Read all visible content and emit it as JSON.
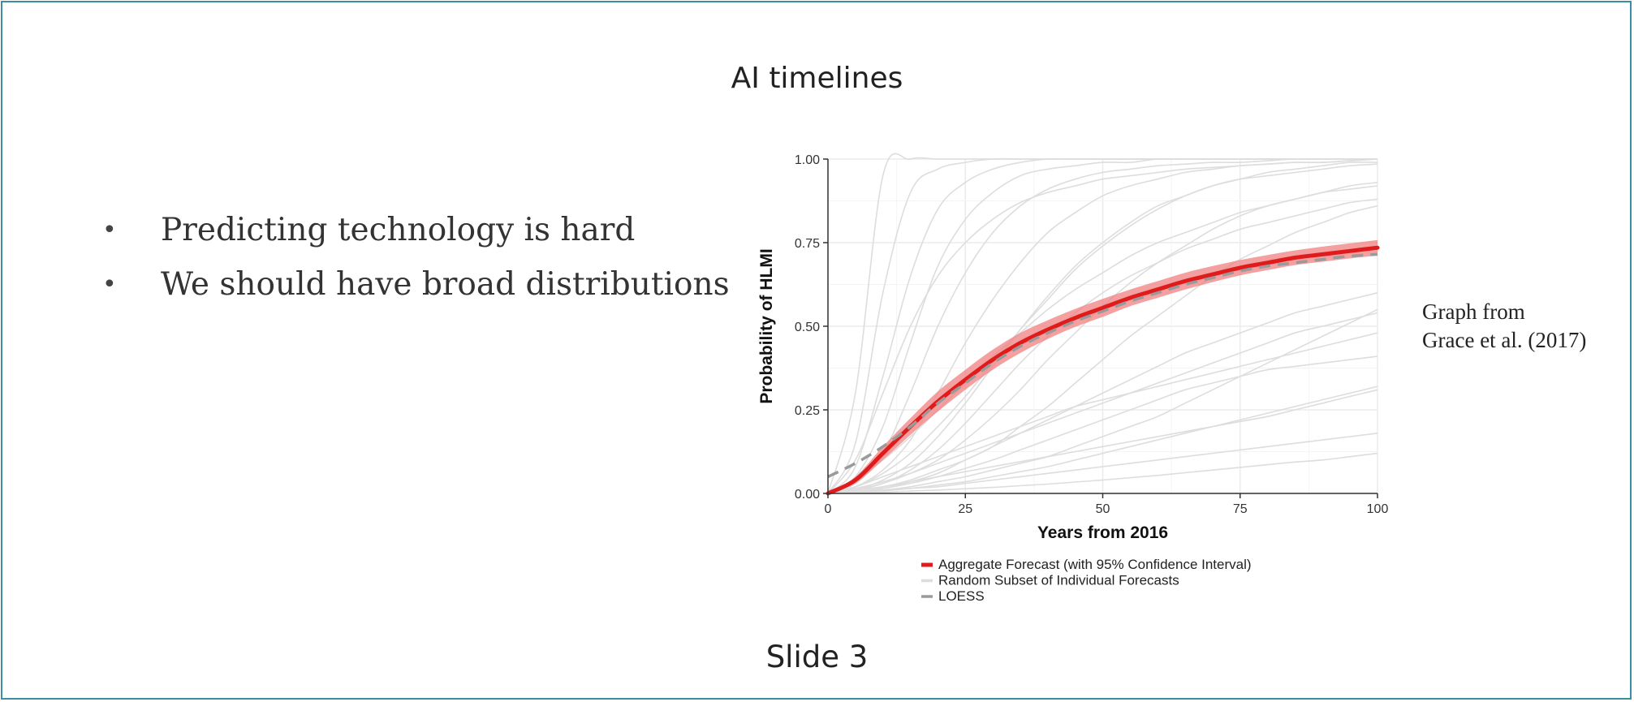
{
  "slide": {
    "title": "AI timelines",
    "bullets": [
      "Predicting technology is hard",
      "We should have broad distributions"
    ],
    "bullet_marker": "•",
    "source_lines": [
      "Graph from",
      "Grace et al. (2017)"
    ],
    "footer": "Slide 3",
    "frame_color": "#3a8fa3"
  },
  "chart_data": {
    "type": "line",
    "xlabel": "Years from 2016",
    "ylabel": "Probability of HLMI",
    "xlim": [
      0,
      100
    ],
    "ylim": [
      0,
      1
    ],
    "x_ticks": [
      0,
      25,
      50,
      75,
      100
    ],
    "y_ticks": [
      "0.00",
      "0.25",
      "0.50",
      "0.75",
      "1.00"
    ],
    "grid": true,
    "legend_position": "bottom",
    "legend": [
      {
        "label": "Aggregate Forecast (with 95% Confidence Interval)",
        "color": "#e01b1b",
        "style": "solid"
      },
      {
        "label": "Random Subset of Individual Forecasts",
        "color": "#dddddd",
        "style": "solid"
      },
      {
        "label": "LOESS",
        "color": "#9a9a9a",
        "style": "dashed"
      }
    ],
    "series": [
      {
        "name": "Aggregate Forecast (with 95% Confidence Interval)",
        "color": "#e01b1b",
        "x": [
          0,
          5,
          10,
          15,
          20,
          25,
          30,
          35,
          40,
          45,
          50,
          55,
          60,
          65,
          70,
          75,
          80,
          85,
          90,
          95,
          100
        ],
        "y": [
          0.0,
          0.04,
          0.12,
          0.2,
          0.275,
          0.34,
          0.4,
          0.45,
          0.49,
          0.525,
          0.555,
          0.585,
          0.61,
          0.635,
          0.655,
          0.675,
          0.69,
          0.705,
          0.715,
          0.725,
          0.735
        ],
        "ci_lower": [
          0.0,
          0.03,
          0.1,
          0.175,
          0.245,
          0.31,
          0.37,
          0.42,
          0.462,
          0.498,
          0.528,
          0.56,
          0.585,
          0.61,
          0.632,
          0.652,
          0.668,
          0.683,
          0.693,
          0.703,
          0.712
        ],
        "ci_upper": [
          0.0,
          0.05,
          0.14,
          0.225,
          0.305,
          0.37,
          0.43,
          0.48,
          0.518,
          0.552,
          0.582,
          0.61,
          0.635,
          0.66,
          0.68,
          0.698,
          0.713,
          0.727,
          0.738,
          0.748,
          0.758
        ]
      },
      {
        "name": "LOESS",
        "color": "#9a9a9a",
        "x": [
          0,
          5,
          10,
          15,
          20,
          25,
          30,
          35,
          40,
          45,
          50,
          55,
          60,
          65,
          70,
          75,
          80,
          85,
          90,
          95,
          100
        ],
        "y": [
          0.05,
          0.09,
          0.14,
          0.2,
          0.27,
          0.33,
          0.39,
          0.44,
          0.48,
          0.515,
          0.545,
          0.575,
          0.6,
          0.625,
          0.645,
          0.665,
          0.68,
          0.69,
          0.7,
          0.71,
          0.715
        ]
      },
      {
        "name": "Random Subset of Individual Forecasts",
        "color": "#dddddd",
        "x": [
          0,
          5,
          10,
          15,
          20,
          25,
          30,
          35,
          40,
          45,
          50,
          55,
          60,
          65,
          70,
          75,
          80,
          85,
          90,
          95,
          100
        ],
        "curves": [
          [
            0,
            0.3,
            0.95,
            1,
            1,
            1,
            1,
            1,
            1,
            1,
            1,
            1,
            1,
            1,
            1,
            1,
            1,
            1,
            1,
            1,
            1
          ],
          [
            0,
            0.15,
            0.6,
            0.9,
            0.97,
            0.99,
            1,
            1,
            1,
            1,
            1,
            1,
            1,
            1,
            1,
            1,
            1,
            1,
            1,
            1,
            1
          ],
          [
            0,
            0.08,
            0.35,
            0.65,
            0.85,
            0.93,
            0.97,
            0.99,
            1,
            1,
            1,
            1,
            1,
            1,
            1,
            1,
            1,
            1,
            1,
            1,
            1
          ],
          [
            0,
            0.05,
            0.2,
            0.45,
            0.68,
            0.82,
            0.9,
            0.95,
            0.97,
            0.98,
            0.99,
            0.99,
            1,
            1,
            1,
            1,
            1,
            1,
            1,
            1,
            1
          ],
          [
            0,
            0.03,
            0.12,
            0.3,
            0.5,
            0.66,
            0.78,
            0.86,
            0.91,
            0.94,
            0.96,
            0.97,
            0.98,
            0.985,
            0.99,
            0.99,
            0.995,
            1,
            1,
            1,
            1
          ],
          [
            0,
            0.02,
            0.07,
            0.16,
            0.3,
            0.45,
            0.58,
            0.69,
            0.78,
            0.84,
            0.89,
            0.92,
            0.94,
            0.96,
            0.97,
            0.98,
            0.985,
            0.99,
            0.99,
            0.995,
            1
          ],
          [
            0,
            0.01,
            0.04,
            0.09,
            0.17,
            0.27,
            0.38,
            0.49,
            0.59,
            0.68,
            0.75,
            0.81,
            0.86,
            0.89,
            0.92,
            0.94,
            0.95,
            0.96,
            0.97,
            0.98,
            0.985
          ],
          [
            0,
            0.01,
            0.03,
            0.06,
            0.1,
            0.16,
            0.23,
            0.31,
            0.4,
            0.48,
            0.56,
            0.63,
            0.69,
            0.74,
            0.79,
            0.83,
            0.86,
            0.88,
            0.9,
            0.92,
            0.93
          ],
          [
            0,
            0.005,
            0.015,
            0.035,
            0.06,
            0.1,
            0.14,
            0.2,
            0.26,
            0.33,
            0.4,
            0.47,
            0.53,
            0.59,
            0.65,
            0.7,
            0.74,
            0.78,
            0.81,
            0.84,
            0.86
          ],
          [
            0,
            0.01,
            0.02,
            0.04,
            0.07,
            0.1,
            0.14,
            0.18,
            0.22,
            0.26,
            0.3,
            0.34,
            0.38,
            0.42,
            0.45,
            0.48,
            0.51,
            0.54,
            0.56,
            0.58,
            0.6
          ],
          [
            0,
            0.02,
            0.05,
            0.08,
            0.11,
            0.14,
            0.17,
            0.2,
            0.23,
            0.26,
            0.28,
            0.3,
            0.32,
            0.34,
            0.36,
            0.38,
            0.4,
            0.42,
            0.44,
            0.46,
            0.48
          ],
          [
            0,
            0.005,
            0.01,
            0.02,
            0.035,
            0.05,
            0.07,
            0.09,
            0.11,
            0.14,
            0.17,
            0.2,
            0.23,
            0.27,
            0.31,
            0.35,
            0.39,
            0.43,
            0.47,
            0.51,
            0.55
          ],
          [
            0,
            0.01,
            0.02,
            0.035,
            0.05,
            0.065,
            0.08,
            0.095,
            0.11,
            0.125,
            0.14,
            0.155,
            0.17,
            0.185,
            0.2,
            0.215,
            0.23,
            0.25,
            0.27,
            0.29,
            0.31
          ],
          [
            0,
            0.003,
            0.008,
            0.015,
            0.025,
            0.035,
            0.05,
            0.065,
            0.08,
            0.1,
            0.12,
            0.14,
            0.16,
            0.18,
            0.2,
            0.22,
            0.24,
            0.26,
            0.28,
            0.3,
            0.32
          ],
          [
            0,
            0.005,
            0.01,
            0.015,
            0.02,
            0.03,
            0.04,
            0.05,
            0.06,
            0.07,
            0.08,
            0.09,
            0.1,
            0.11,
            0.12,
            0.13,
            0.14,
            0.15,
            0.16,
            0.17,
            0.18
          ],
          [
            0,
            0.002,
            0.004,
            0.007,
            0.01,
            0.014,
            0.018,
            0.023,
            0.028,
            0.034,
            0.04,
            0.047,
            0.054,
            0.062,
            0.07,
            0.078,
            0.086,
            0.094,
            0.1,
            0.11,
            0.12
          ],
          [
            0,
            0.04,
            0.1,
            0.17,
            0.25,
            0.33,
            0.41,
            0.48,
            0.55,
            0.61,
            0.66,
            0.71,
            0.75,
            0.78,
            0.81,
            0.84,
            0.86,
            0.88,
            0.9,
            0.91,
            0.92
          ],
          [
            0,
            0.02,
            0.06,
            0.12,
            0.2,
            0.29,
            0.39,
            0.49,
            0.58,
            0.67,
            0.74,
            0.8,
            0.85,
            0.89,
            0.92,
            0.94,
            0.96,
            0.97,
            0.98,
            0.99,
            0.99
          ],
          [
            0,
            0.1,
            0.3,
            0.5,
            0.65,
            0.75,
            0.82,
            0.87,
            0.9,
            0.92,
            0.94,
            0.95,
            0.96,
            0.97,
            0.975,
            0.98,
            0.985,
            0.99,
            0.99,
            0.995,
            1
          ],
          [
            0,
            0.01,
            0.03,
            0.07,
            0.13,
            0.21,
            0.3,
            0.39,
            0.47,
            0.54,
            0.6,
            0.65,
            0.69,
            0.73,
            0.76,
            0.79,
            0.81,
            0.83,
            0.85,
            0.87,
            0.88
          ],
          [
            0,
            0.006,
            0.015,
            0.03,
            0.05,
            0.075,
            0.1,
            0.13,
            0.16,
            0.19,
            0.22,
            0.25,
            0.28,
            0.31,
            0.33,
            0.35,
            0.37,
            0.38,
            0.39,
            0.4,
            0.41
          ],
          [
            0,
            0.015,
            0.035,
            0.06,
            0.09,
            0.12,
            0.15,
            0.18,
            0.21,
            0.24,
            0.27,
            0.3,
            0.33,
            0.36,
            0.39,
            0.42,
            0.45,
            0.48,
            0.5,
            0.52,
            0.54
          ]
        ]
      }
    ]
  }
}
